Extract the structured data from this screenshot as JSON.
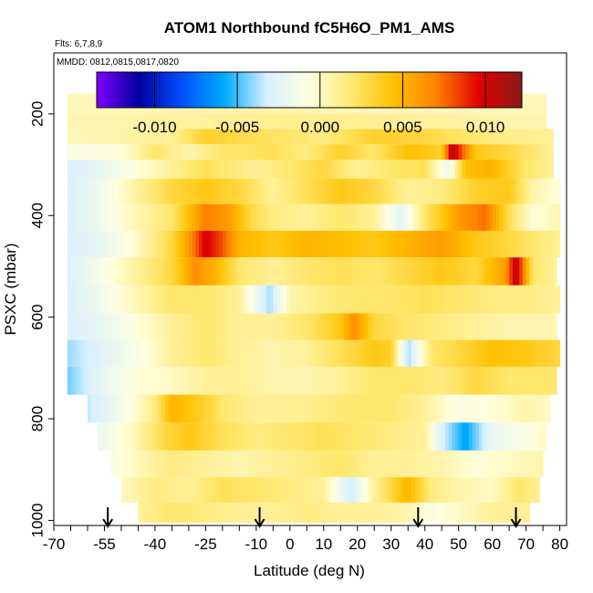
{
  "chart_data": {
    "type": "heatmap",
    "title": "ATOM1 Northbound fC5H6O_PM1_AMS",
    "flights_label": "Flts: 6,7,8,9",
    "dates_label": "MMDD: 0812,0815,0817,0820",
    "xlabel": "Latitude (deg N)",
    "ylabel": "PSXC (mbar)",
    "xlim": [
      -70,
      82
    ],
    "ylim": [
      1010,
      80
    ],
    "x_ticks": [
      -70,
      -55,
      -40,
      -25,
      -10,
      0,
      10,
      20,
      30,
      40,
      50,
      60,
      70,
      80
    ],
    "x_tick_labels": [
      "-70",
      "-55",
      "-40",
      "-25",
      "-10",
      "0",
      "10",
      "20",
      "30",
      "40",
      "50",
      "60",
      "70",
      "80"
    ],
    "y_ticks": [
      200,
      400,
      600,
      800,
      1000
    ],
    "y_tick_labels": [
      "200",
      "400",
      "600",
      "800",
      "1000"
    ],
    "colorbar": {
      "min": -0.0135,
      "max": 0.0122,
      "ticks": [
        -0.01,
        -0.005,
        0.0,
        0.005,
        0.01
      ],
      "tick_labels": [
        "-0.010",
        "-0.005",
        "0.000",
        "0.005",
        "0.010"
      ],
      "colors": [
        "#7F00FF",
        "#0000A0",
        "#0050FF",
        "#00AAFF",
        "#D8F0FF",
        "#FFFFE0",
        "#FFE870",
        "#FFC000",
        "#FF8000",
        "#E00000",
        "#8B1A1A"
      ]
    },
    "arrow_latitudes": [
      -54,
      -9,
      38,
      67
    ],
    "bands": [
      {
        "p": 185,
        "xmin": -66,
        "xmax": 76,
        "v": [
          [
            -66,
            0.0002
          ],
          [
            -40,
            0.0004
          ],
          [
            -10,
            0.0006
          ],
          [
            20,
            0.0003
          ],
          [
            50,
            0.0004
          ],
          [
            76,
            0.0002
          ]
        ]
      },
      {
        "p": 215,
        "xmin": -66,
        "xmax": 76,
        "v": [
          [
            -66,
            0.0004
          ],
          [
            -30,
            0.0008
          ],
          [
            0,
            0.0012
          ],
          [
            30,
            0.001
          ],
          [
            60,
            0.0006
          ],
          [
            76,
            0.0004
          ]
        ]
      },
      {
        "p": 245,
        "xmin": -66,
        "xmax": 78,
        "v": [
          [
            -66,
            0.0002
          ],
          [
            -35,
            0.001
          ],
          [
            -25,
            0.0035
          ],
          [
            -10,
            0.0025
          ],
          [
            10,
            0.0015
          ],
          [
            25,
            0.0035
          ],
          [
            40,
            0.003
          ],
          [
            60,
            0.0015
          ],
          [
            78,
            0.001
          ]
        ]
      },
      {
        "p": 275,
        "xmin": -66,
        "xmax": 78,
        "v": [
          [
            -66,
            -0.001
          ],
          [
            -50,
            -0.0005
          ],
          [
            -40,
            0.002
          ],
          [
            -30,
            0.0005
          ],
          [
            -20,
            0.002
          ],
          [
            -5,
            0.0025
          ],
          [
            5,
            0.0015
          ],
          [
            15,
            0.0035
          ],
          [
            25,
            0.002
          ],
          [
            35,
            0.0045
          ],
          [
            45,
            0.0035
          ],
          [
            48,
            0.011
          ],
          [
            55,
            0.004
          ],
          [
            65,
            0.003
          ],
          [
            78,
            0.001
          ]
        ]
      },
      {
        "p": 305,
        "xmin": -66,
        "xmax": 78,
        "v": [
          [
            -66,
            -0.003
          ],
          [
            -55,
            -0.002
          ],
          [
            -45,
            -0.0005
          ],
          [
            -35,
            0.001
          ],
          [
            -25,
            0.0025
          ],
          [
            -10,
            0.001
          ],
          [
            0,
            0.002
          ],
          [
            10,
            0.003
          ],
          [
            20,
            0.001
          ],
          [
            30,
            0.002
          ],
          [
            40,
            0.0025
          ],
          [
            47,
            -0.002
          ],
          [
            52,
            0.0045
          ],
          [
            60,
            0.005
          ],
          [
            70,
            0.002
          ],
          [
            78,
            0.001
          ]
        ]
      },
      {
        "p": 350,
        "xmin": -66,
        "xmax": 80,
        "v": [
          [
            -66,
            -0.003
          ],
          [
            -55,
            -0.0015
          ],
          [
            -45,
            0.001
          ],
          [
            -35,
            0.003
          ],
          [
            -25,
            0.004
          ],
          [
            -15,
            0.003
          ],
          [
            -5,
            0.001
          ],
          [
            5,
            0.0025
          ],
          [
            15,
            0.004
          ],
          [
            25,
            0.003
          ],
          [
            35,
            0.001
          ],
          [
            45,
            0.0015
          ],
          [
            55,
            0.0035
          ],
          [
            65,
            0.004
          ],
          [
            72,
            0.0005
          ],
          [
            80,
            -0.0005
          ]
        ]
      },
      {
        "p": 405,
        "xmin": -66,
        "xmax": 80,
        "v": [
          [
            -66,
            -0.003
          ],
          [
            -55,
            -0.0015
          ],
          [
            -45,
            0.0005
          ],
          [
            -35,
            0.002
          ],
          [
            -25,
            0.007
          ],
          [
            -18,
            0.006
          ],
          [
            -12,
            0.003
          ],
          [
            -5,
            0.0015
          ],
          [
            5,
            0.001
          ],
          [
            15,
            0.002
          ],
          [
            25,
            0.001
          ],
          [
            33,
            -0.0025
          ],
          [
            40,
            0.002
          ],
          [
            50,
            0.006
          ],
          [
            58,
            0.0075
          ],
          [
            65,
            0.0025
          ],
          [
            72,
            -0.0005
          ],
          [
            80,
            0.0005
          ]
        ]
      },
      {
        "p": 455,
        "xmin": -66,
        "xmax": 80,
        "v": [
          [
            -66,
            -0.003
          ],
          [
            -55,
            -0.002
          ],
          [
            -45,
            0.0
          ],
          [
            -35,
            0.003
          ],
          [
            -30,
            0.006
          ],
          [
            -25,
            0.01
          ],
          [
            -20,
            0.008
          ],
          [
            -15,
            0.005
          ],
          [
            -5,
            0.004
          ],
          [
            5,
            0.005
          ],
          [
            15,
            0.0045
          ],
          [
            25,
            0.004
          ],
          [
            35,
            0.005
          ],
          [
            45,
            0.006
          ],
          [
            55,
            0.004
          ],
          [
            65,
            0.003
          ],
          [
            72,
            0.002
          ],
          [
            80,
            0.001
          ]
        ]
      },
      {
        "p": 510,
        "xmin": -66,
        "xmax": 79,
        "v": [
          [
            -66,
            -0.003
          ],
          [
            -55,
            -0.001
          ],
          [
            -45,
            0.001
          ],
          [
            -35,
            0.003
          ],
          [
            -28,
            0.0065
          ],
          [
            -22,
            0.005
          ],
          [
            -15,
            0.002
          ],
          [
            -5,
            0.001
          ],
          [
            5,
            0.002
          ],
          [
            15,
            0.0025
          ],
          [
            25,
            0.002
          ],
          [
            35,
            0.003
          ],
          [
            45,
            0.004
          ],
          [
            55,
            0.003
          ],
          [
            64,
            0.006
          ],
          [
            67,
            0.011
          ],
          [
            72,
            0.002
          ],
          [
            79,
            0.001
          ]
        ]
      },
      {
        "p": 565,
        "xmin": -66,
        "xmax": 80,
        "v": [
          [
            -66,
            -0.003
          ],
          [
            -55,
            -0.0015
          ],
          [
            -45,
            0.0005
          ],
          [
            -35,
            0.002
          ],
          [
            -25,
            0.002
          ],
          [
            -15,
            0.001
          ],
          [
            -6,
            -0.004
          ],
          [
            0,
            0.0005
          ],
          [
            10,
            0.0015
          ],
          [
            20,
            0.002
          ],
          [
            30,
            0.002
          ],
          [
            40,
            0.0025
          ],
          [
            50,
            0.002
          ],
          [
            60,
            0.0015
          ],
          [
            70,
            0.0015
          ],
          [
            80,
            0.001
          ]
        ]
      },
      {
        "p": 620,
        "xmin": -66,
        "xmax": 79,
        "v": [
          [
            -66,
            -0.003
          ],
          [
            -55,
            -0.002
          ],
          [
            -45,
            -0.0005
          ],
          [
            -35,
            0.001
          ],
          [
            -25,
            0.002
          ],
          [
            -15,
            0.001
          ],
          [
            -5,
            0.001
          ],
          [
            5,
            0.002
          ],
          [
            15,
            0.004
          ],
          [
            19,
            0.0065
          ],
          [
            25,
            0.003
          ],
          [
            35,
            0.002
          ],
          [
            45,
            0.0015
          ],
          [
            55,
            0.001
          ],
          [
            65,
            0.0005
          ],
          [
            79,
            0.0005
          ]
        ]
      },
      {
        "p": 670,
        "xmin": -66,
        "xmax": 80,
        "v": [
          [
            -66,
            -0.004
          ],
          [
            -55,
            -0.0025
          ],
          [
            -45,
            -0.001
          ],
          [
            -35,
            0.001
          ],
          [
            -25,
            0.002
          ],
          [
            -15,
            0.001
          ],
          [
            -5,
            0.0005
          ],
          [
            5,
            0.001
          ],
          [
            15,
            0.0025
          ],
          [
            25,
            0.004
          ],
          [
            30,
            0.0035
          ],
          [
            35,
            -0.004
          ],
          [
            42,
            0.002
          ],
          [
            50,
            0.003
          ],
          [
            60,
            0.0045
          ],
          [
            70,
            0.004
          ],
          [
            80,
            0.003
          ]
        ]
      },
      {
        "p": 725,
        "xmin": -66,
        "xmax": 79,
        "v": [
          [
            -66,
            -0.0045
          ],
          [
            -55,
            -0.002
          ],
          [
            -45,
            -0.0005
          ],
          [
            -35,
            0.0
          ],
          [
            -25,
            0.001
          ],
          [
            -15,
            0.001
          ],
          [
            -5,
            0.0005
          ],
          [
            5,
            0.0005
          ],
          [
            15,
            0.001
          ],
          [
            25,
            0.002
          ],
          [
            35,
            0.002
          ],
          [
            45,
            0.0015
          ],
          [
            55,
            0.003
          ],
          [
            65,
            0.002
          ],
          [
            79,
            0.002
          ]
        ]
      },
      {
        "p": 780,
        "xmin": -60,
        "xmax": 77,
        "v": [
          [
            -60,
            -0.0035
          ],
          [
            -50,
            -0.0015
          ],
          [
            -40,
            0.0015
          ],
          [
            -35,
            0.005
          ],
          [
            -28,
            0.004
          ],
          [
            -20,
            0.002
          ],
          [
            -10,
            0.001
          ],
          [
            0,
            0.001
          ],
          [
            10,
            0.0015
          ],
          [
            20,
            0.002
          ],
          [
            30,
            0.002
          ],
          [
            40,
            0.001
          ],
          [
            50,
            -0.001
          ],
          [
            60,
            -0.0005
          ],
          [
            70,
            0.0005
          ],
          [
            77,
            0.0
          ]
        ]
      },
      {
        "p": 835,
        "xmin": -57,
        "xmax": 76,
        "v": [
          [
            -57,
            -0.002
          ],
          [
            -47,
            0.0
          ],
          [
            -37,
            0.003
          ],
          [
            -30,
            0.004
          ],
          [
            -20,
            0.0025
          ],
          [
            -10,
            0.0015
          ],
          [
            0,
            0.002
          ],
          [
            10,
            0.0025
          ],
          [
            20,
            0.002
          ],
          [
            30,
            0.0015
          ],
          [
            40,
            0.001
          ],
          [
            45,
            -0.003
          ],
          [
            52,
            -0.006
          ],
          [
            60,
            -0.002
          ],
          [
            70,
            -0.001
          ],
          [
            76,
            0.0
          ]
        ]
      },
      {
        "p": 890,
        "xmin": -53,
        "xmax": 75,
        "v": [
          [
            -53,
            -0.001
          ],
          [
            -43,
            0.0005
          ],
          [
            -35,
            0.0015
          ],
          [
            -25,
            0.001
          ],
          [
            -15,
            0.0005
          ],
          [
            -5,
            0.001
          ],
          [
            5,
            0.0015
          ],
          [
            15,
            0.002
          ],
          [
            25,
            0.001
          ],
          [
            35,
            0.001
          ],
          [
            45,
            0.0005
          ],
          [
            55,
            -0.0005
          ],
          [
            65,
            0.0
          ],
          [
            75,
            0.0005
          ]
        ]
      },
      {
        "p": 940,
        "xmin": -50,
        "xmax": 74,
        "v": [
          [
            -50,
            0.0
          ],
          [
            -40,
            0.0015
          ],
          [
            -30,
            0.001
          ],
          [
            -20,
            0.0025
          ],
          [
            -10,
            0.002
          ],
          [
            0,
            0.0015
          ],
          [
            10,
            0.001
          ],
          [
            18,
            -0.0035
          ],
          [
            25,
            0.001
          ],
          [
            35,
            0.005
          ],
          [
            42,
            0.0015
          ],
          [
            50,
            0.0005
          ],
          [
            60,
            0.0
          ],
          [
            68,
            0.002
          ],
          [
            74,
            0.001
          ]
        ]
      },
      {
        "p": 990,
        "xmin": -45,
        "xmax": 71,
        "v": [
          [
            -45,
            0.001
          ],
          [
            -35,
            0.002
          ],
          [
            -25,
            0.0015
          ],
          [
            -15,
            0.001
          ],
          [
            -5,
            0.001
          ],
          [
            5,
            0.0015
          ],
          [
            15,
            0.001
          ],
          [
            25,
            0.001
          ],
          [
            35,
            0.0005
          ],
          [
            42,
            -0.001
          ],
          [
            50,
            0.0
          ],
          [
            60,
            0.001
          ],
          [
            71,
            0.001
          ]
        ]
      }
    ]
  }
}
